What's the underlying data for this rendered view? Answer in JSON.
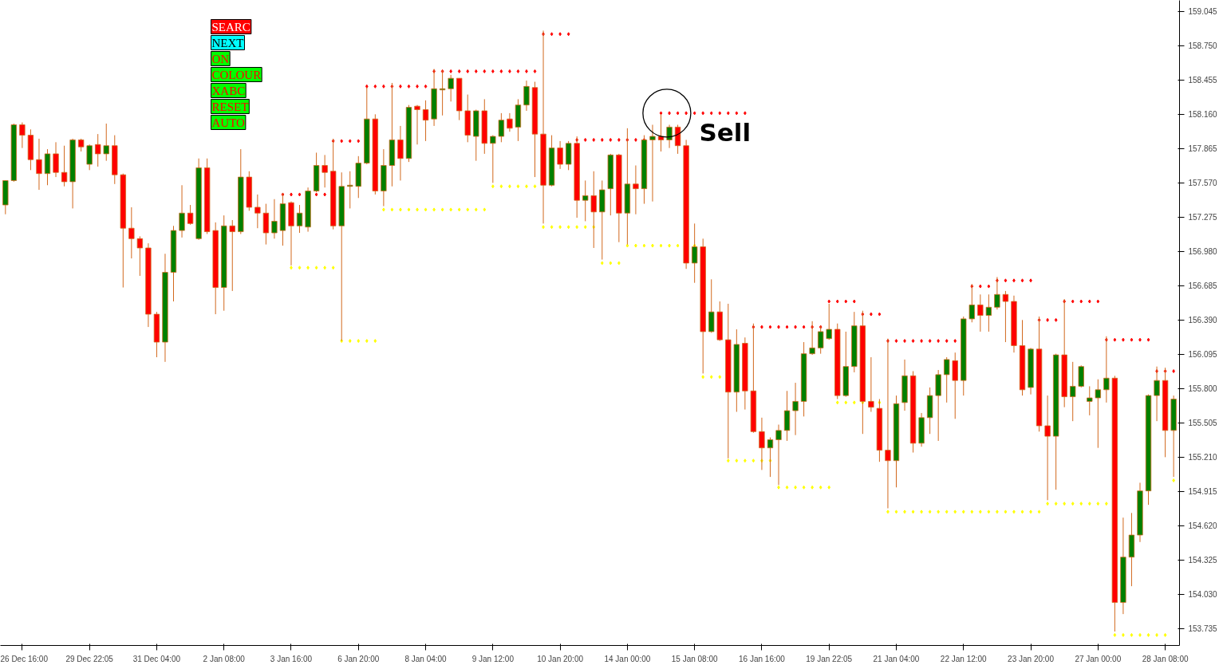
{
  "chart_data": {
    "type": "candlestick",
    "categories": [
      null,
      null,
      "26 Dec 16:00",
      null,
      null,
      null,
      null,
      null,
      null,
      null,
      "29 Dec 22:05",
      null,
      null,
      null,
      null,
      null,
      null,
      null,
      "31 Dec 04:00",
      null,
      null,
      null,
      null,
      null,
      null,
      null,
      "2 Jan 08:00",
      null,
      null,
      null,
      null,
      null,
      null,
      null,
      "3 Jan 16:00",
      null,
      null,
      null,
      null,
      null,
      null,
      null,
      "6 Jan 20:00",
      null,
      null,
      null,
      null,
      null,
      null,
      null,
      "8 Jan 04:00",
      null,
      null,
      null,
      null,
      null,
      null,
      null,
      "9 Jan 12:00",
      null,
      null,
      null,
      null,
      null,
      null,
      null,
      "10 Jan 20:00",
      null,
      null,
      null,
      null,
      null,
      null,
      null,
      "14 Jan 00:00",
      null,
      null,
      null,
      null,
      null,
      null,
      null,
      "15 Jan 08:00",
      null,
      null,
      null,
      null,
      null,
      null,
      null,
      "16 Jan 16:00",
      null,
      null,
      null,
      null,
      null,
      null,
      null,
      "19 Jan 22:05",
      null,
      null,
      null,
      null,
      null,
      null,
      null,
      "21 Jan 04:00",
      null,
      null,
      null,
      null,
      null,
      null,
      null,
      "22 Jan 12:00",
      null,
      null,
      null,
      null,
      null,
      null,
      null,
      "23 Jan 20:00",
      null,
      null,
      null,
      null,
      null,
      null,
      null,
      "27 Jan 00:00",
      null,
      null,
      null,
      null,
      null,
      null,
      null,
      "28 Jan 08:00",
      null
    ],
    "ohlc": [
      [
        157.38,
        157.59,
        157.3,
        157.59
      ],
      [
        157.59,
        158.08,
        157.58,
        158.07
      ],
      [
        158.07,
        158.09,
        157.87,
        157.98
      ],
      [
        157.98,
        158.03,
        157.68,
        157.77
      ],
      [
        157.77,
        157.95,
        157.51,
        157.65
      ],
      [
        157.65,
        157.86,
        157.55,
        157.82
      ],
      [
        157.82,
        157.92,
        157.62,
        157.66
      ],
      [
        157.66,
        157.89,
        157.54,
        157.58
      ],
      [
        157.58,
        157.95,
        157.35,
        157.94
      ],
      [
        157.94,
        157.95,
        157.84,
        157.88
      ],
      [
        157.73,
        157.9,
        157.68,
        157.89
      ],
      [
        157.9,
        157.99,
        157.71,
        157.82
      ],
      [
        157.82,
        158.08,
        157.76,
        157.89
      ],
      [
        157.89,
        157.98,
        157.56,
        157.64
      ],
      [
        157.64,
        157.65,
        156.67,
        157.18
      ],
      [
        157.18,
        157.36,
        156.92,
        157.09
      ],
      [
        157.09,
        157.11,
        156.77,
        157.01
      ],
      [
        157.01,
        157.05,
        156.33,
        156.44
      ],
      [
        156.44,
        156.46,
        156.07,
        156.2
      ],
      [
        156.2,
        156.96,
        156.03,
        156.8
      ],
      [
        156.8,
        157.2,
        156.55,
        157.16
      ],
      [
        157.16,
        157.55,
        157.1,
        157.31
      ],
      [
        157.31,
        157.38,
        157.21,
        157.22
      ],
      [
        157.09,
        157.78,
        157.08,
        157.7
      ],
      [
        157.7,
        157.78,
        157.13,
        157.15
      ],
      [
        157.16,
        157.23,
        156.44,
        156.67
      ],
      [
        156.67,
        157.29,
        156.47,
        157.2
      ],
      [
        157.2,
        157.25,
        156.64,
        157.15
      ],
      [
        157.15,
        157.86,
        157.13,
        157.62
      ],
      [
        157.62,
        157.67,
        157.33,
        157.36
      ],
      [
        157.36,
        157.47,
        157.18,
        157.31
      ],
      [
        157.31,
        157.39,
        157.04,
        157.14
      ],
      [
        157.14,
        157.43,
        157.09,
        157.24
      ],
      [
        157.16,
        157.48,
        157.03,
        157.39
      ],
      [
        157.4,
        157.41,
        156.86,
        157.2
      ],
      [
        157.2,
        157.38,
        157.14,
        157.31
      ],
      [
        157.19,
        157.53,
        157.15,
        157.5
      ],
      [
        157.5,
        157.83,
        157.49,
        157.72
      ],
      [
        157.72,
        157.81,
        157.53,
        157.66
      ],
      [
        157.67,
        157.95,
        157.17,
        157.2
      ],
      [
        157.2,
        157.66,
        156.21,
        157.54
      ],
      [
        157.54,
        157.67,
        157.35,
        157.55
      ],
      [
        157.54,
        157.8,
        157.44,
        157.74
      ],
      [
        157.74,
        158.39,
        157.73,
        158.12
      ],
      [
        158.12,
        158.16,
        157.47,
        157.5
      ],
      [
        157.5,
        157.86,
        157.37,
        157.72
      ],
      [
        157.72,
        158.43,
        157.54,
        157.94
      ],
      [
        157.94,
        158.06,
        157.59,
        157.78
      ],
      [
        157.78,
        158.24,
        157.75,
        158.22
      ],
      [
        158.23,
        158.24,
        157.9,
        158.2
      ],
      [
        158.2,
        158.28,
        157.93,
        158.11
      ],
      [
        158.12,
        158.55,
        158.06,
        158.38
      ],
      [
        158.37,
        158.54,
        158.15,
        158.38
      ],
      [
        158.38,
        158.5,
        158.27,
        158.47
      ],
      [
        158.47,
        158.47,
        158.11,
        158.19
      ],
      [
        158.19,
        158.33,
        157.92,
        157.98
      ],
      [
        157.97,
        158.2,
        157.76,
        158.19
      ],
      [
        158.19,
        158.29,
        157.82,
        157.91
      ],
      [
        157.91,
        157.98,
        157.57,
        157.97
      ],
      [
        157.97,
        158.17,
        157.92,
        158.11
      ],
      [
        158.12,
        158.17,
        158.01,
        158.04
      ],
      [
        158.05,
        158.29,
        157.93,
        158.24
      ],
      [
        158.24,
        158.45,
        158.19,
        158.4
      ],
      [
        158.39,
        158.44,
        157.62,
        157.99
      ],
      [
        157.99,
        158.88,
        157.22,
        157.55
      ],
      [
        157.55,
        157.98,
        157.54,
        157.87
      ],
      [
        157.87,
        157.93,
        157.69,
        157.73
      ],
      [
        157.73,
        157.93,
        157.68,
        157.91
      ],
      [
        157.91,
        157.97,
        157.27,
        157.42
      ],
      [
        157.42,
        157.59,
        157.24,
        157.46
      ],
      [
        157.46,
        157.67,
        157.01,
        157.32
      ],
      [
        157.32,
        157.59,
        156.91,
        157.51
      ],
      [
        157.52,
        157.82,
        157.29,
        157.81
      ],
      [
        157.81,
        157.82,
        157.06,
        157.31
      ],
      [
        157.31,
        158.04,
        157.04,
        157.56
      ],
      [
        157.56,
        157.72,
        157.3,
        157.52
      ],
      [
        157.52,
        157.98,
        157.39,
        157.94
      ],
      [
        157.94,
        158.07,
        157.41,
        157.97
      ],
      [
        157.97,
        158.16,
        157.84,
        157.94
      ],
      [
        157.94,
        158.07,
        157.87,
        158.05
      ],
      [
        158.05,
        158.07,
        157.82,
        157.89
      ],
      [
        157.89,
        157.94,
        156.83,
        156.88
      ],
      [
        156.88,
        157.22,
        156.71,
        157.02
      ],
      [
        157.02,
        157.09,
        155.93,
        156.29
      ],
      [
        156.29,
        156.74,
        156.28,
        156.46
      ],
      [
        156.46,
        156.55,
        156.21,
        156.22
      ],
      [
        156.22,
        156.53,
        155.2,
        155.77
      ],
      [
        155.77,
        156.31,
        155.6,
        156.18
      ],
      [
        156.19,
        156.24,
        155.62,
        155.78
      ],
      [
        155.78,
        156.36,
        155.42,
        155.43
      ],
      [
        155.43,
        155.55,
        155.1,
        155.29
      ],
      [
        155.29,
        155.38,
        155.04,
        155.36
      ],
      [
        155.36,
        155.49,
        154.97,
        155.44
      ],
      [
        155.44,
        155.78,
        155.35,
        155.61
      ],
      [
        155.61,
        155.85,
        155.4,
        155.69
      ],
      [
        155.69,
        156.2,
        155.56,
        156.1
      ],
      [
        156.1,
        156.38,
        156.09,
        156.15
      ],
      [
        156.15,
        156.34,
        156.1,
        156.29
      ],
      [
        156.23,
        156.53,
        156.22,
        156.31
      ],
      [
        156.31,
        156.36,
        155.71,
        155.74
      ],
      [
        155.74,
        156.29,
        155.73,
        155.99
      ],
      [
        155.99,
        156.46,
        155.94,
        156.34
      ],
      [
        156.34,
        156.47,
        155.41,
        155.69
      ],
      [
        155.69,
        156.07,
        155.6,
        155.64
      ],
      [
        155.63,
        155.71,
        155.17,
        155.27
      ],
      [
        155.27,
        156.23,
        154.77,
        155.18
      ],
      [
        155.18,
        155.74,
        154.95,
        155.67
      ],
      [
        155.68,
        156.05,
        155.61,
        155.91
      ],
      [
        155.91,
        155.95,
        155.25,
        155.33
      ],
      [
        155.33,
        155.59,
        155.3,
        155.55
      ],
      [
        155.55,
        155.81,
        155.41,
        155.74
      ],
      [
        155.74,
        155.96,
        155.35,
        155.92
      ],
      [
        155.92,
        156.07,
        155.68,
        156.05
      ],
      [
        156.04,
        156.11,
        155.54,
        155.87
      ],
      [
        155.87,
        156.42,
        155.74,
        156.4
      ],
      [
        156.4,
        156.7,
        156.37,
        156.52
      ],
      [
        156.52,
        156.61,
        156.29,
        156.43
      ],
      [
        156.43,
        156.61,
        156.29,
        156.5
      ],
      [
        156.5,
        156.76,
        156.48,
        156.61
      ],
      [
        156.61,
        156.64,
        156.2,
        156.55
      ],
      [
        156.55,
        156.6,
        156.11,
        156.17
      ],
      [
        156.17,
        156.39,
        155.74,
        155.79
      ],
      [
        155.81,
        156.15,
        155.75,
        156.14
      ],
      [
        156.14,
        156.42,
        155.43,
        155.48
      ],
      [
        155.48,
        155.74,
        154.84,
        155.39
      ],
      [
        155.39,
        156.1,
        154.93,
        156.09
      ],
      [
        156.09,
        156.57,
        155.64,
        155.73
      ],
      [
        155.73,
        156.03,
        155.52,
        155.82
      ],
      [
        155.82,
        156.0,
        155.81,
        155.99
      ],
      [
        155.69,
        155.82,
        155.57,
        155.72
      ],
      [
        155.72,
        155.88,
        155.29,
        155.79
      ],
      [
        155.79,
        156.25,
        155.68,
        155.89
      ],
      [
        155.89,
        155.91,
        153.71,
        153.96
      ],
      [
        153.96,
        154.69,
        153.86,
        154.35
      ],
      [
        154.35,
        154.73,
        154.1,
        154.54
      ],
      [
        154.54,
        154.99,
        154.48,
        154.92
      ],
      [
        154.92,
        155.75,
        154.8,
        155.74
      ],
      [
        155.74,
        155.99,
        155.52,
        155.87
      ],
      [
        155.87,
        155.98,
        155.21,
        155.44
      ],
      [
        155.44,
        155.74,
        155.04,
        155.71
      ]
    ],
    "colors": [
      "#008000",
      "#008000",
      "#ff0000",
      "#ff0000",
      "#ff0000",
      "#008000",
      "#ff0000",
      "#ff0000",
      "#008000",
      "#ff0000",
      "#008000",
      "#ff0000",
      "#008000",
      "#ff0000",
      "#ff0000",
      "#ff0000",
      "#ff0000",
      "#ff0000",
      "#ff0000",
      "#008000",
      "#008000",
      "#008000",
      "#ff0000",
      "#008000",
      "#ff0000",
      "#ff0000",
      "#008000",
      "#ff0000",
      "#008000",
      "#ff0000",
      "#ff0000",
      "#ff0000",
      "#008000",
      "#008000",
      "#ff0000",
      "#008000",
      "#008000",
      "#008000",
      "#ff0000",
      "#ff0000",
      "#008000",
      "#008000",
      "#008000",
      "#008000",
      "#ff0000",
      "#008000",
      "#008000",
      "#ff0000",
      "#008000",
      "#ff0000",
      "#ff0000",
      "#008000",
      "#008000",
      "#008000",
      "#ff0000",
      "#ff0000",
      "#008000",
      "#ff0000",
      "#008000",
      "#008000",
      "#ff0000",
      "#008000",
      "#008000",
      "#ff0000",
      "#ff0000",
      "#008000",
      "#ff0000",
      "#008000",
      "#ff0000",
      "#008000",
      "#ff0000",
      "#008000",
      "#008000",
      "#ff0000",
      "#008000",
      "#ff0000",
      "#008000",
      "#008000",
      "#ff0000",
      "#008000",
      "#ff0000",
      "#ff0000",
      "#008000",
      "#ff0000",
      "#008000",
      "#ff0000",
      "#ff0000",
      "#008000",
      "#ff0000",
      "#ff0000",
      "#ff0000",
      "#008000",
      "#008000",
      "#008000",
      "#008000",
      "#008000",
      "#008000",
      "#008000",
      "#008000",
      "#ff0000",
      "#008000",
      "#008000",
      "#ff0000",
      "#ff0000",
      "#ff0000",
      "#ff0000",
      "#008000",
      "#008000",
      "#ff0000",
      "#008000",
      "#008000",
      "#008000",
      "#008000",
      "#ff0000",
      "#008000",
      "#008000",
      "#ff0000",
      "#008000",
      "#008000",
      "#ff0000",
      "#ff0000",
      "#ff0000",
      "#008000",
      "#ff0000",
      "#ff0000",
      "#008000",
      "#ff0000",
      "#008000",
      "#008000",
      "#008000",
      "#008000",
      "#008000",
      "#ff0000",
      "#008000",
      "#008000",
      "#008000",
      "#008000",
      "#008000",
      "#ff0000",
      "#008000"
    ],
    "series": [
      {
        "type": "scatter",
        "color": "#ff0000",
        "values": [
          null,
          null,
          null,
          null,
          null,
          null,
          null,
          null,
          null,
          null,
          null,
          null,
          null,
          null,
          null,
          null,
          null,
          null,
          null,
          null,
          null,
          null,
          null,
          null,
          null,
          null,
          null,
          null,
          null,
          null,
          null,
          null,
          null,
          157.47,
          157.47,
          157.47,
          null,
          157.47,
          157.47,
          157.93,
          157.93,
          157.93,
          157.93,
          158.4,
          158.4,
          158.4,
          158.4,
          158.4,
          158.4,
          158.4,
          158.4,
          158.53,
          158.53,
          158.53,
          158.53,
          158.53,
          158.53,
          158.53,
          158.53,
          158.53,
          158.53,
          158.53,
          158.53,
          158.53,
          158.85,
          158.85,
          158.85,
          158.85,
          157.94,
          157.94,
          157.94,
          157.94,
          157.94,
          157.94,
          157.94,
          157.94,
          157.94,
          null,
          158.17,
          158.17,
          158.17,
          158.17,
          158.17,
          158.17,
          158.17,
          158.17,
          158.17,
          158.17,
          158.17,
          156.33,
          156.33,
          156.33,
          156.33,
          156.33,
          156.33,
          156.33,
          156.33,
          156.33,
          156.55,
          156.55,
          156.55,
          156.55,
          156.44,
          156.44,
          156.44,
          156.21,
          156.21,
          156.21,
          156.21,
          156.21,
          156.21,
          156.21,
          156.21,
          156.21,
          null,
          156.68,
          156.68,
          156.68,
          156.73,
          156.73,
          156.73,
          156.73,
          156.73,
          156.39,
          156.39,
          156.39,
          156.55,
          156.55,
          156.55,
          156.55,
          156.55,
          156.22,
          156.22,
          156.22,
          156.22,
          156.22,
          156.22,
          155.95,
          155.95,
          155.95
        ]
      },
      {
        "type": "scatter",
        "color": "#ffff00",
        "values": [
          null,
          null,
          null,
          null,
          null,
          null,
          null,
          null,
          null,
          null,
          null,
          null,
          null,
          null,
          null,
          null,
          null,
          null,
          null,
          null,
          null,
          null,
          null,
          null,
          null,
          null,
          null,
          null,
          null,
          null,
          null,
          null,
          null,
          null,
          156.84,
          156.84,
          156.84,
          156.84,
          156.84,
          156.84,
          156.21,
          156.21,
          156.21,
          156.21,
          156.21,
          157.34,
          157.34,
          157.34,
          157.34,
          157.34,
          157.34,
          157.34,
          157.34,
          157.34,
          157.34,
          157.34,
          157.34,
          157.34,
          157.54,
          157.54,
          157.54,
          157.54,
          157.54,
          157.54,
          157.19,
          157.19,
          157.19,
          157.19,
          157.19,
          157.19,
          157.19,
          156.88,
          156.88,
          156.88,
          157.03,
          157.03,
          157.03,
          157.03,
          157.03,
          157.03,
          157.03,
          null,
          157.03,
          155.9,
          155.9,
          155.9,
          155.18,
          155.18,
          155.18,
          155.18,
          155.18,
          155.18,
          154.95,
          154.95,
          154.95,
          154.95,
          154.95,
          154.95,
          154.95,
          155.68,
          155.68,
          155.68,
          155.68,
          155.68,
          155.68,
          154.74,
          154.74,
          154.74,
          154.74,
          154.74,
          154.74,
          154.74,
          154.74,
          154.74,
          154.74,
          154.74,
          154.74,
          154.74,
          154.74,
          154.74,
          154.74,
          154.74,
          154.74,
          154.74,
          154.81,
          154.81,
          154.81,
          154.81,
          154.81,
          154.81,
          154.81,
          154.81,
          153.68,
          153.68,
          153.68,
          153.68,
          153.68,
          153.68,
          153.68,
          155.01
        ]
      }
    ],
    "marker": "diamond",
    "ylim": [
      153.59,
      159.14
    ],
    "yticks": [
      153.735,
      {
        "value": 154.03,
        "label": "154.030"
      },
      154.325,
      {
        "value": 154.62,
        "label": "154.620"
      },
      154.915,
      {
        "value": 155.21,
        "label": "155.210"
      },
      155.505,
      {
        "value": 155.8,
        "label": "155.800"
      },
      156.095,
      {
        "value": 156.39,
        "label": "156.390"
      },
      156.685,
      {
        "value": 156.98,
        "label": "156.980"
      },
      157.275,
      {
        "value": 157.57,
        "label": "157.570"
      },
      157.865,
      {
        "value": 158.16,
        "label": "158.160"
      },
      158.455,
      {
        "value": 158.75,
        "label": "158.750"
      },
      159.045
    ],
    "grid": false,
    "annotations": [
      "SEARC",
      "NEXT",
      "ON",
      "COLOUR",
      "XABC",
      "RESET",
      "AUTO",
      "Sell"
    ]
  }
}
